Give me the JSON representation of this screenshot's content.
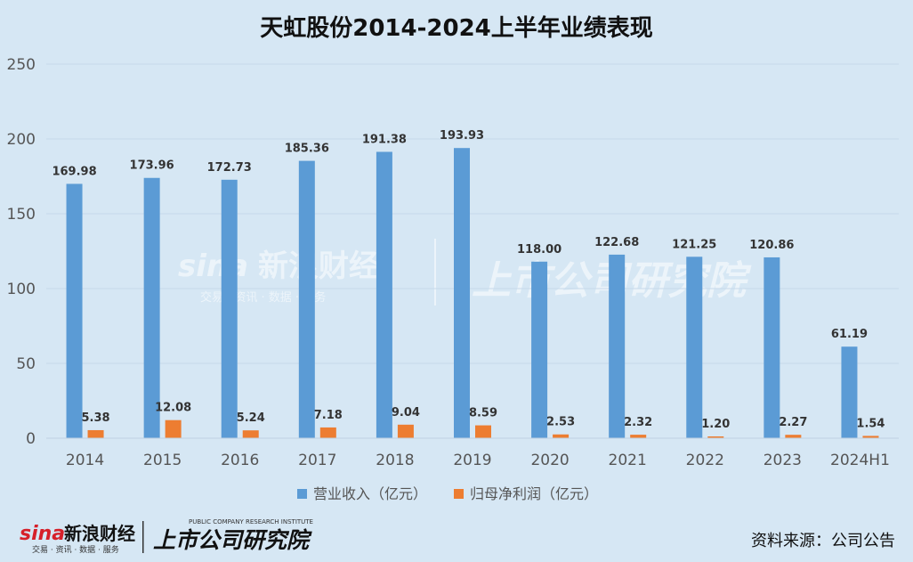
{
  "chart_data": {
    "type": "bar",
    "title": "天虹股份2014-2024上半年业绩表现",
    "categories": [
      "2014",
      "2015",
      "2016",
      "2017",
      "2018",
      "2019",
      "2020",
      "2021",
      "2022",
      "2023",
      "2024H1"
    ],
    "series": [
      {
        "name": "营业收入（亿元）",
        "color": "#5b9bd5",
        "values": [
          169.98,
          173.96,
          172.73,
          185.36,
          191.38,
          193.93,
          118.0,
          122.68,
          121.25,
          120.86,
          61.19
        ],
        "labels": [
          "169.98",
          "173.96",
          "172.73",
          "185.36",
          "191.38",
          "193.93",
          "118.00",
          "122.68",
          "121.25",
          "120.86",
          "61.19"
        ]
      },
      {
        "name": "归母净利润（亿元）",
        "color": "#ed7d31",
        "values": [
          5.38,
          12.08,
          5.24,
          7.18,
          9.04,
          8.59,
          2.53,
          2.32,
          1.2,
          2.27,
          1.54
        ],
        "labels": [
          "5.38",
          "12.08",
          "5.24",
          "7.18",
          "9.04",
          "8.59",
          "2.53",
          "2.32",
          "1.20",
          "2.27",
          "1.54"
        ]
      }
    ],
    "ylim": [
      0,
      250
    ],
    "yticks": [
      0,
      50,
      100,
      150,
      200,
      250
    ],
    "grid": true,
    "legend": "bottom"
  },
  "source_text": "资料来源：公司公告",
  "watermark": {
    "brand": "新浪财经",
    "brand_sub": "交易 · 资讯 · 数据 · 服务",
    "column": "上市公司研究院",
    "column_en": "PUBLIC COMPANY RESEARCH INSTITUTE"
  },
  "colors": {
    "background": "#d6e7f4",
    "grid": "#c6d9ea"
  }
}
